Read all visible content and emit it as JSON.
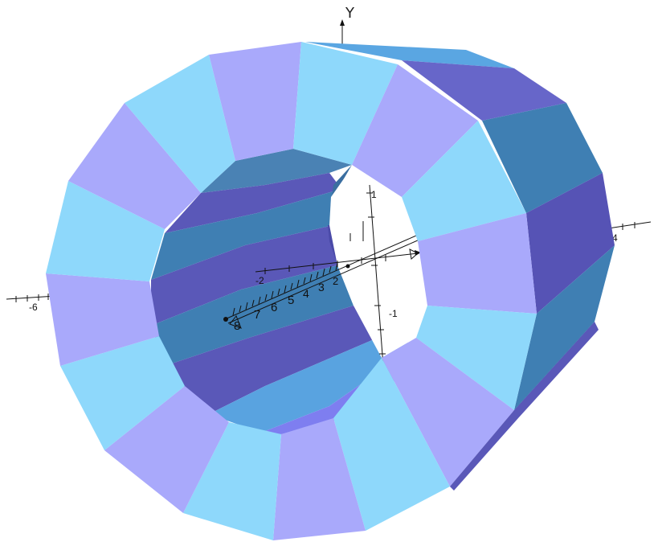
{
  "scene": {
    "type": "3d-surface",
    "shape": "hollow-polygonal-cylinder",
    "axes": {
      "y_title": "Y",
      "outer_tick_labels": {
        "x_neg": "-6",
        "x_pos": "4"
      },
      "inner_tick_labels": {
        "y_pos": "1",
        "y_neg": "-1",
        "x_neg": "-2",
        "depth": [
          "8",
          "7",
          "6",
          "5",
          "4",
          "3",
          "2"
        ]
      }
    },
    "colors": {
      "face_light_cyan": "#8ed8fb",
      "face_lavender": "#a9a9fb",
      "face_steel_blue": "#3f7fb3",
      "face_indigo": "#5a58b8",
      "face_mid_blue": "#59a3e0",
      "face_slate_purple": "#6a67cc",
      "face_bright_violet": "#7e7ef0"
    }
  }
}
